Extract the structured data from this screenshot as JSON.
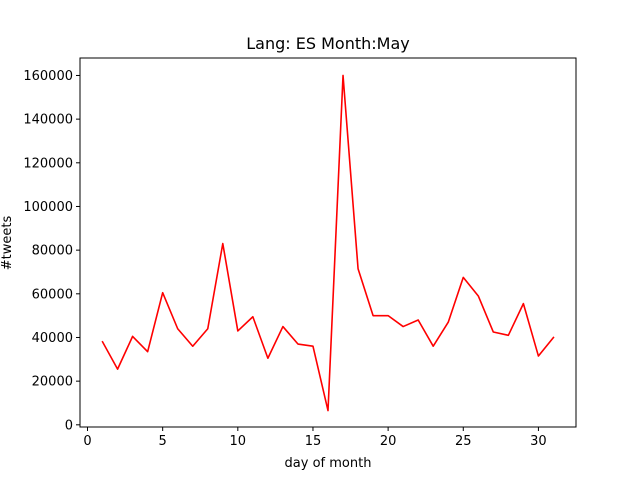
{
  "chart_data": {
    "type": "line",
    "title": "Lang: ES Month:May",
    "xlabel": "day of month",
    "ylabel": "#tweets",
    "xlim": [
      -0.5,
      32.5
    ],
    "ylim": [
      -1000,
      168000
    ],
    "xticks": [
      0,
      5,
      10,
      15,
      20,
      25,
      30
    ],
    "yticks": [
      0,
      20000,
      40000,
      60000,
      80000,
      100000,
      120000,
      140000,
      160000
    ],
    "grid": false,
    "series": [
      {
        "name": "tweets",
        "color": "#ff0000",
        "x": [
          1,
          2,
          3,
          4,
          5,
          6,
          7,
          8,
          9,
          10,
          11,
          12,
          13,
          14,
          15,
          16,
          17,
          18,
          19,
          20,
          21,
          22,
          23,
          24,
          25,
          26,
          27,
          28,
          29,
          30,
          31
        ],
        "values": [
          38000,
          25500,
          40500,
          33500,
          60500,
          44000,
          36000,
          44000,
          83000,
          43000,
          49500,
          30500,
          45000,
          37000,
          36000,
          6500,
          160000,
          71500,
          50000,
          50000,
          45000,
          48000,
          36000,
          47000,
          67500,
          59000,
          42500,
          41000,
          55500,
          31500,
          40000
        ]
      }
    ]
  }
}
